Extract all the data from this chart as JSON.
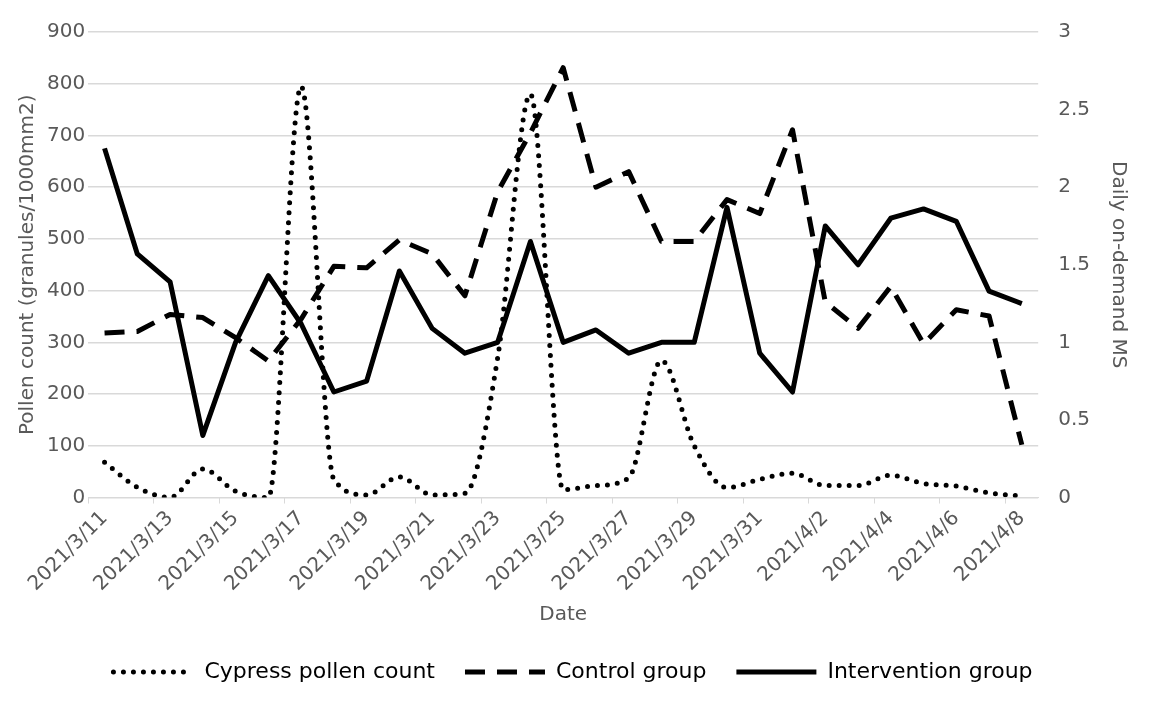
{
  "chart_data": {
    "type": "line",
    "xlabel": "Date",
    "ylabel": "Pollen count (granules/1000mm2)",
    "y2label": "Daily on-demand MS",
    "categories": [
      "2021/3/11",
      null,
      "2021/3/13",
      null,
      "2021/3/15",
      null,
      "2021/3/17",
      null,
      "2021/3/19",
      null,
      "2021/3/21",
      null,
      "2021/3/23",
      null,
      "2021/3/25",
      null,
      "2021/3/27",
      null,
      "2021/3/29",
      null,
      "2021/3/31",
      null,
      "2021/4/2",
      null,
      "2021/4/4",
      null,
      "2021/4/6",
      null,
      "2021/4/8"
    ],
    "series": [
      {
        "name": "Cypress pollen count",
        "color": "#000000",
        "line_style": "dotted",
        "values": [
          68,
          20,
          0,
          55,
          12,
          0,
          795,
          35,
          5,
          40,
          5,
          8,
          270,
          780,
          15,
          23,
          38,
          265,
          100,
          19,
          35,
          47,
          23,
          23,
          43,
          27,
          22,
          9,
          3
        ]
      },
      {
        "name": "Control group",
        "color": "#000000",
        "line_style": "dashed",
        "axis": "y2",
        "values": [
          1.06,
          1.07,
          1.18,
          1.16,
          1.03,
          0.88,
          1.15,
          1.49,
          1.48,
          1.66,
          1.57,
          1.3,
          1.97,
          2.35,
          2.77,
          2.0,
          2.1,
          1.65,
          1.65,
          1.92,
          1.83,
          2.37,
          1.26,
          1.09,
          1.36,
          0.99,
          1.21,
          1.17,
          0.34
        ]
      },
      {
        "name": "Intervention group",
        "color": "#000000",
        "line_style": "solid",
        "axis": "y2",
        "values": [
          2.25,
          1.57,
          1.39,
          0.4,
          1.0,
          1.43,
          1.12,
          0.68,
          0.75,
          1.46,
          1.09,
          0.93,
          1.0,
          1.65,
          1.0,
          1.08,
          0.93,
          1.0,
          1.0,
          1.87,
          0.93,
          0.68,
          1.75,
          1.5,
          1.8,
          1.86,
          1.78,
          1.33,
          1.25
        ]
      }
    ],
    "ylim": [
      0,
      900
    ],
    "yticks": [
      0,
      100,
      200,
      300,
      400,
      500,
      600,
      700,
      800,
      900
    ],
    "y2lim": [
      0,
      3
    ],
    "y2ticks": [
      0,
      0.5,
      1,
      1.5,
      2,
      2.5,
      3
    ],
    "grid": "y",
    "legend": "bottom",
    "marker": "none"
  }
}
